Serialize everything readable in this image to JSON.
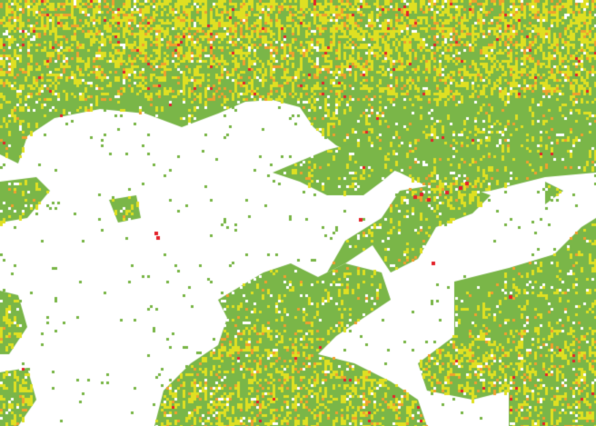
{
  "map": {
    "type": "classified-raster",
    "palette": {
      "background": "#ffffff",
      "low": "#7ab648",
      "medium": "#dfe022",
      "high": "#f0a02e",
      "very_high": "#e3242b"
    }
  }
}
